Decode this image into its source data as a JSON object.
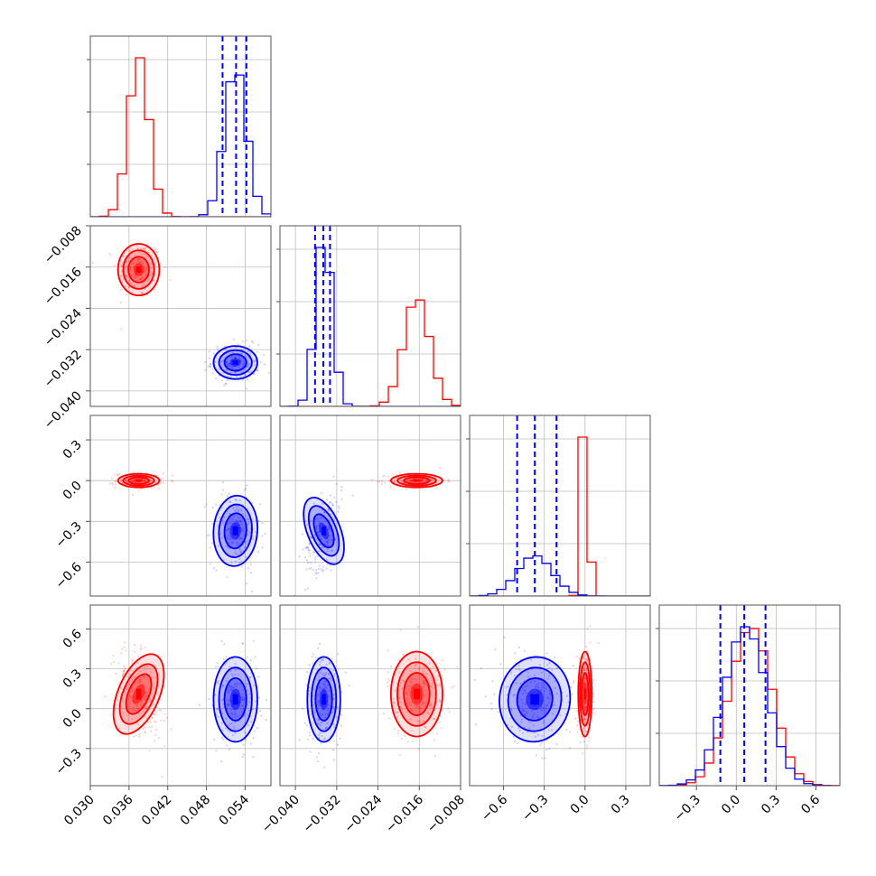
{
  "chart_data": {
    "type": "corner",
    "grid": true,
    "parameters": [
      {
        "range": [
          0.03,
          0.058
        ],
        "ticks": [
          0.03,
          0.036,
          0.042,
          0.048,
          0.054
        ],
        "tick_labels": [
          "0.030",
          "0.036",
          "0.042",
          "0.048",
          "0.054"
        ]
      },
      {
        "range": [
          -0.043,
          -0.008
        ],
        "ticks": [
          -0.04,
          -0.032,
          -0.024,
          -0.016,
          -0.008
        ],
        "tick_labels": [
          "−0.040",
          "−0.032",
          "−0.024",
          "−0.016",
          "−0.008"
        ]
      },
      {
        "range": [
          -0.85,
          0.48
        ],
        "ticks": [
          -0.6,
          -0.3,
          0.0,
          0.3
        ],
        "tick_labels": [
          "−0.6",
          "−0.3",
          "0.0",
          "0.3"
        ]
      },
      {
        "range": [
          -0.58,
          0.78
        ],
        "ticks": [
          -0.3,
          0.0,
          0.3,
          0.6
        ],
        "tick_labels": [
          "−0.3",
          "0.0",
          "0.3",
          "0.6"
        ]
      }
    ],
    "series": [
      {
        "color": "#ff0000",
        "means": [
          0.0375,
          -0.0165,
          0.0,
          0.11
        ],
        "sds": [
          0.0016,
          0.0025,
          0.025,
          0.16
        ],
        "contours": {
          "1_0": 0.0,
          "2_0": 0.0,
          "2_1": 0.0,
          "3_0": -0.5,
          "3_1": 0.0,
          "3_2": 0.0
        },
        "quantiles": []
      },
      {
        "color": "#0000ff",
        "means": [
          0.0525,
          -0.0345,
          -0.37,
          0.07
        ],
        "sds": [
          0.0017,
          0.0016,
          0.13,
          0.16
        ],
        "contours": {
          "1_0": 0.0,
          "2_0": -0.1,
          "2_1": 0.45,
          "3_0": 0.0,
          "3_1": 0.0,
          "3_2": -0.2
        },
        "quantiles": [
          [
            0.0505,
            0.0526,
            0.0542
          ],
          [
            -0.0362,
            -0.0346,
            -0.0333
          ],
          [
            -0.5,
            -0.37,
            -0.21
          ],
          [
            -0.12,
            0.06,
            0.22
          ]
        ]
      }
    ]
  }
}
